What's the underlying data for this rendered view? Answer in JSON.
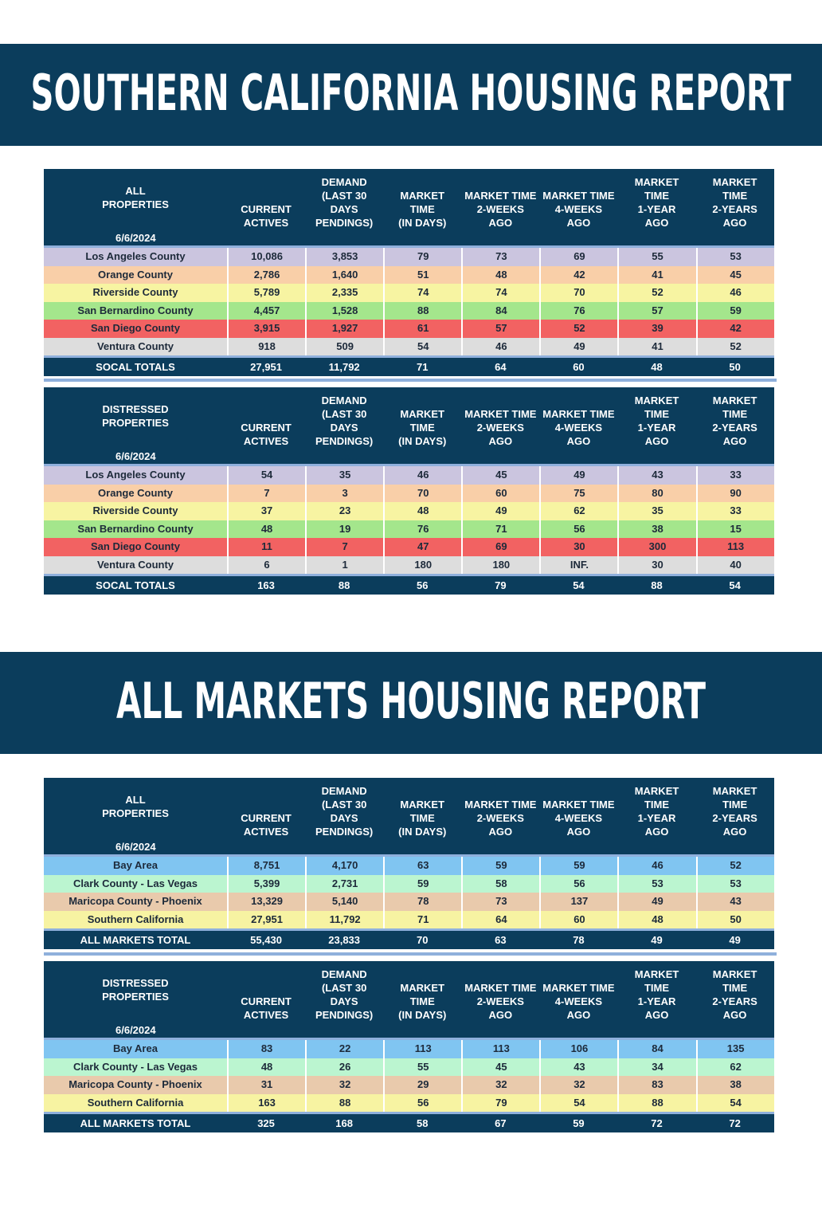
{
  "sections": [
    {
      "title": "SOUTHERN CALIFORNIA HOUSING REPORT",
      "tables": [
        {
          "label": [
            "ALL",
            "PROPERTIES"
          ],
          "date": "6/6/2024",
          "columns": [
            [
              "CURRENT",
              "ACTIVES"
            ],
            [
              "DEMAND",
              "(LAST 30",
              "DAYS",
              "PENDINGS)"
            ],
            [
              "MARKET",
              "TIME",
              "(IN DAYS)"
            ],
            [
              "MARKET TIME",
              "2-WEEKS",
              "AGO"
            ],
            [
              "MARKET TIME",
              "4-WEEKS",
              "AGO"
            ],
            [
              "MARKET",
              "TIME",
              "1-YEAR",
              "AGO"
            ],
            [
              "MARKET",
              "TIME",
              "2-YEARS",
              "AGO"
            ]
          ],
          "rows": [
            {
              "color": "#cbc5df",
              "cells": [
                "Los Angeles County",
                "10,086",
                "3,853",
                "79",
                "73",
                "69",
                "55",
                "53"
              ]
            },
            {
              "color": "#f9cfa8",
              "cells": [
                "Orange County",
                "2,786",
                "1,640",
                "51",
                "48",
                "42",
                "41",
                "45"
              ]
            },
            {
              "color": "#f7f4a2",
              "cells": [
                "Riverside County",
                "5,789",
                "2,335",
                "74",
                "74",
                "70",
                "52",
                "46"
              ]
            },
            {
              "color": "#a4e68c",
              "cells": [
                "San Bernardino County",
                "4,457",
                "1,528",
                "88",
                "84",
                "76",
                "57",
                "59"
              ]
            },
            {
              "color": "#f26262",
              "cells": [
                "San Diego County",
                "3,915",
                "1,927",
                "61",
                "57",
                "52",
                "39",
                "42"
              ]
            },
            {
              "color": "#dddddd",
              "cells": [
                "Ventura County",
                "918",
                "509",
                "54",
                "46",
                "49",
                "41",
                "52"
              ]
            }
          ],
          "total": [
            "SOCAL TOTALS",
            "27,951",
            "11,792",
            "71",
            "64",
            "60",
            "48",
            "50"
          ]
        },
        {
          "label": [
            "DISTRESSED",
            "PROPERTIES"
          ],
          "date": "6/6/2024",
          "columns": [
            [
              "CURRENT",
              "ACTIVES"
            ],
            [
              "DEMAND",
              "(LAST 30",
              "DAYS",
              "PENDINGS)"
            ],
            [
              "MARKET",
              "TIME",
              "(IN DAYS)"
            ],
            [
              "MARKET TIME",
              "2-WEEKS",
              "AGO"
            ],
            [
              "MARKET TIME",
              "4-WEEKS",
              "AGO"
            ],
            [
              "MARKET",
              "TIME",
              "1-YEAR",
              "AGO"
            ],
            [
              "MARKET",
              "TIME",
              "2-YEARS",
              "AGO"
            ]
          ],
          "rows": [
            {
              "color": "#cbc5df",
              "cells": [
                "Los Angeles County",
                "54",
                "35",
                "46",
                "45",
                "49",
                "43",
                "33"
              ]
            },
            {
              "color": "#f9cfa8",
              "cells": [
                "Orange County",
                "7",
                "3",
                "70",
                "60",
                "75",
                "80",
                "90"
              ]
            },
            {
              "color": "#f7f4a2",
              "cells": [
                "Riverside County",
                "37",
                "23",
                "48",
                "49",
                "62",
                "35",
                "33"
              ]
            },
            {
              "color": "#a4e68c",
              "cells": [
                "San Bernardino County",
                "48",
                "19",
                "76",
                "71",
                "56",
                "38",
                "15"
              ]
            },
            {
              "color": "#f26262",
              "cells": [
                "San Diego County",
                "11",
                "7",
                "47",
                "69",
                "30",
                "300",
                "113"
              ]
            },
            {
              "color": "#dddddd",
              "cells": [
                "Ventura County",
                "6",
                "1",
                "180",
                "180",
                "INF.",
                "30",
                "40"
              ]
            }
          ],
          "total": [
            "SOCAL TOTALS",
            "163",
            "88",
            "56",
            "79",
            "54",
            "88",
            "54"
          ]
        }
      ]
    },
    {
      "title": "ALL MARKETS HOUSING REPORT",
      "tables": [
        {
          "label": [
            "ALL",
            "PROPERTIES"
          ],
          "date": "6/6/2024",
          "columns": [
            [
              "CURRENT",
              "ACTIVES"
            ],
            [
              "DEMAND",
              "(LAST 30",
              "DAYS",
              "PENDINGS)"
            ],
            [
              "MARKET",
              "TIME",
              "(IN DAYS)"
            ],
            [
              "MARKET TIME",
              "2-WEEKS",
              "AGO"
            ],
            [
              "MARKET TIME",
              "4-WEEKS",
              "AGO"
            ],
            [
              "MARKET",
              "TIME",
              "1-YEAR",
              "AGO"
            ],
            [
              "MARKET",
              "TIME",
              "2-YEARS",
              "AGO"
            ]
          ],
          "rows": [
            {
              "color": "#80c5f1",
              "cells": [
                "Bay Area",
                "8,751",
                "4,170",
                "63",
                "59",
                "59",
                "46",
                "52"
              ]
            },
            {
              "color": "#bbf5d0",
              "cells": [
                "Clark County - Las Vegas",
                "5,399",
                "2,731",
                "59",
                "58",
                "56",
                "53",
                "53"
              ]
            },
            {
              "color": "#e9caac",
              "cells": [
                "Maricopa County - Phoenix",
                "13,329",
                "5,140",
                "78",
                "73",
                "137",
                "49",
                "43"
              ]
            },
            {
              "color": "#f7f3a2",
              "cells": [
                "Southern California",
                "27,951",
                "11,792",
                "71",
                "64",
                "60",
                "48",
                "50"
              ]
            }
          ],
          "total": [
            "ALL MARKETS TOTAL",
            "55,430",
            "23,833",
            "70",
            "63",
            "78",
            "49",
            "49"
          ]
        },
        {
          "label": [
            "DISTRESSED",
            "PROPERTIES"
          ],
          "date": "6/6/2024",
          "columns": [
            [
              "CURRENT",
              "ACTIVES"
            ],
            [
              "DEMAND",
              "(LAST 30",
              "DAYS",
              "PENDINGS)"
            ],
            [
              "MARKET",
              "TIME",
              "(IN DAYS)"
            ],
            [
              "MARKET TIME",
              "2-WEEKS",
              "AGO"
            ],
            [
              "MARKET TIME",
              "4-WEEKS",
              "AGO"
            ],
            [
              "MARKET",
              "TIME",
              "1-YEAR",
              "AGO"
            ],
            [
              "MARKET",
              "TIME",
              "2-YEARS",
              "AGO"
            ]
          ],
          "rows": [
            {
              "color": "#80c5f1",
              "cells": [
                "Bay Area",
                "83",
                "22",
                "113",
                "113",
                "106",
                "84",
                "135"
              ]
            },
            {
              "color": "#bbf5d0",
              "cells": [
                "Clark County - Las Vegas",
                "48",
                "26",
                "55",
                "45",
                "43",
                "34",
                "62"
              ]
            },
            {
              "color": "#e9caac",
              "cells": [
                "Maricopa County - Phoenix",
                "31",
                "32",
                "29",
                "32",
                "32",
                "83",
                "38"
              ]
            },
            {
              "color": "#f7f3a2",
              "cells": [
                "Southern California",
                "163",
                "88",
                "56",
                "79",
                "54",
                "88",
                "54"
              ]
            }
          ],
          "total": [
            "ALL MARKETS TOTAL",
            "325",
            "168",
            "58",
            "67",
            "59",
            "72",
            "72"
          ]
        }
      ]
    }
  ]
}
